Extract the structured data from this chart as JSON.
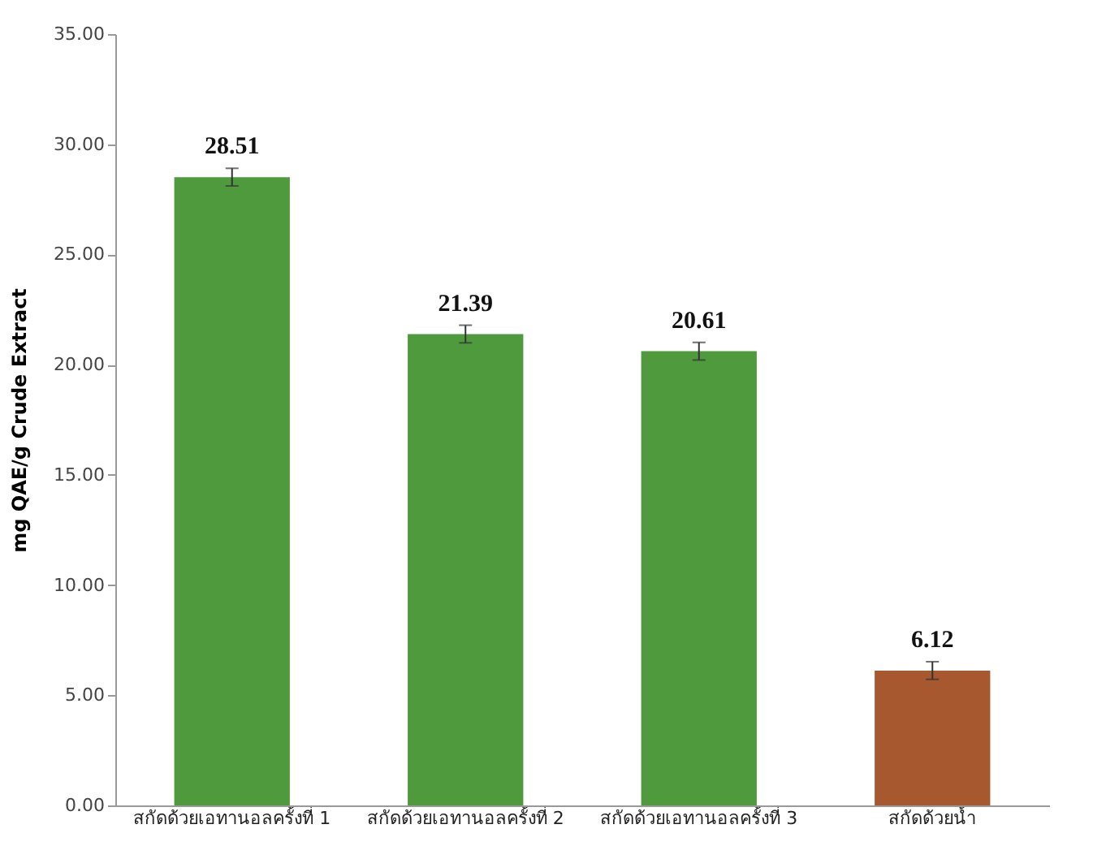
{
  "chart_data": {
    "type": "bar",
    "ylabel": "mg QAE/g Crude Extract",
    "categories": [
      "สกัดด้วยเอทานอลครั้งที่ 1",
      "สกัดด้วยเอทานอลครั้งที่ 2",
      "สกัดด้วยเอทานอลครั้งที่ 3",
      "สกัดด้วยน้ำ"
    ],
    "values": [
      28.51,
      21.39,
      20.61,
      6.12
    ],
    "errors": [
      0.4,
      0.4,
      0.4,
      0.4
    ],
    "colors": [
      "#4e9a3c",
      "#4e9a3c",
      "#4e9a3c",
      "#a8582e"
    ],
    "data_labels": true,
    "ylim": [
      0,
      35
    ],
    "yticks": [
      {
        "value": 0,
        "label": "0.00"
      },
      {
        "value": 5,
        "label": "5.00"
      },
      {
        "value": 10,
        "label": "10.00"
      },
      {
        "value": 15,
        "label": "15.00"
      },
      {
        "value": 20,
        "label": "20.00"
      },
      {
        "value": 25,
        "label": "25.00"
      },
      {
        "value": 30,
        "label": "30.00"
      },
      {
        "value": 35,
        "label": "35.00"
      }
    ],
    "grid": false
  }
}
